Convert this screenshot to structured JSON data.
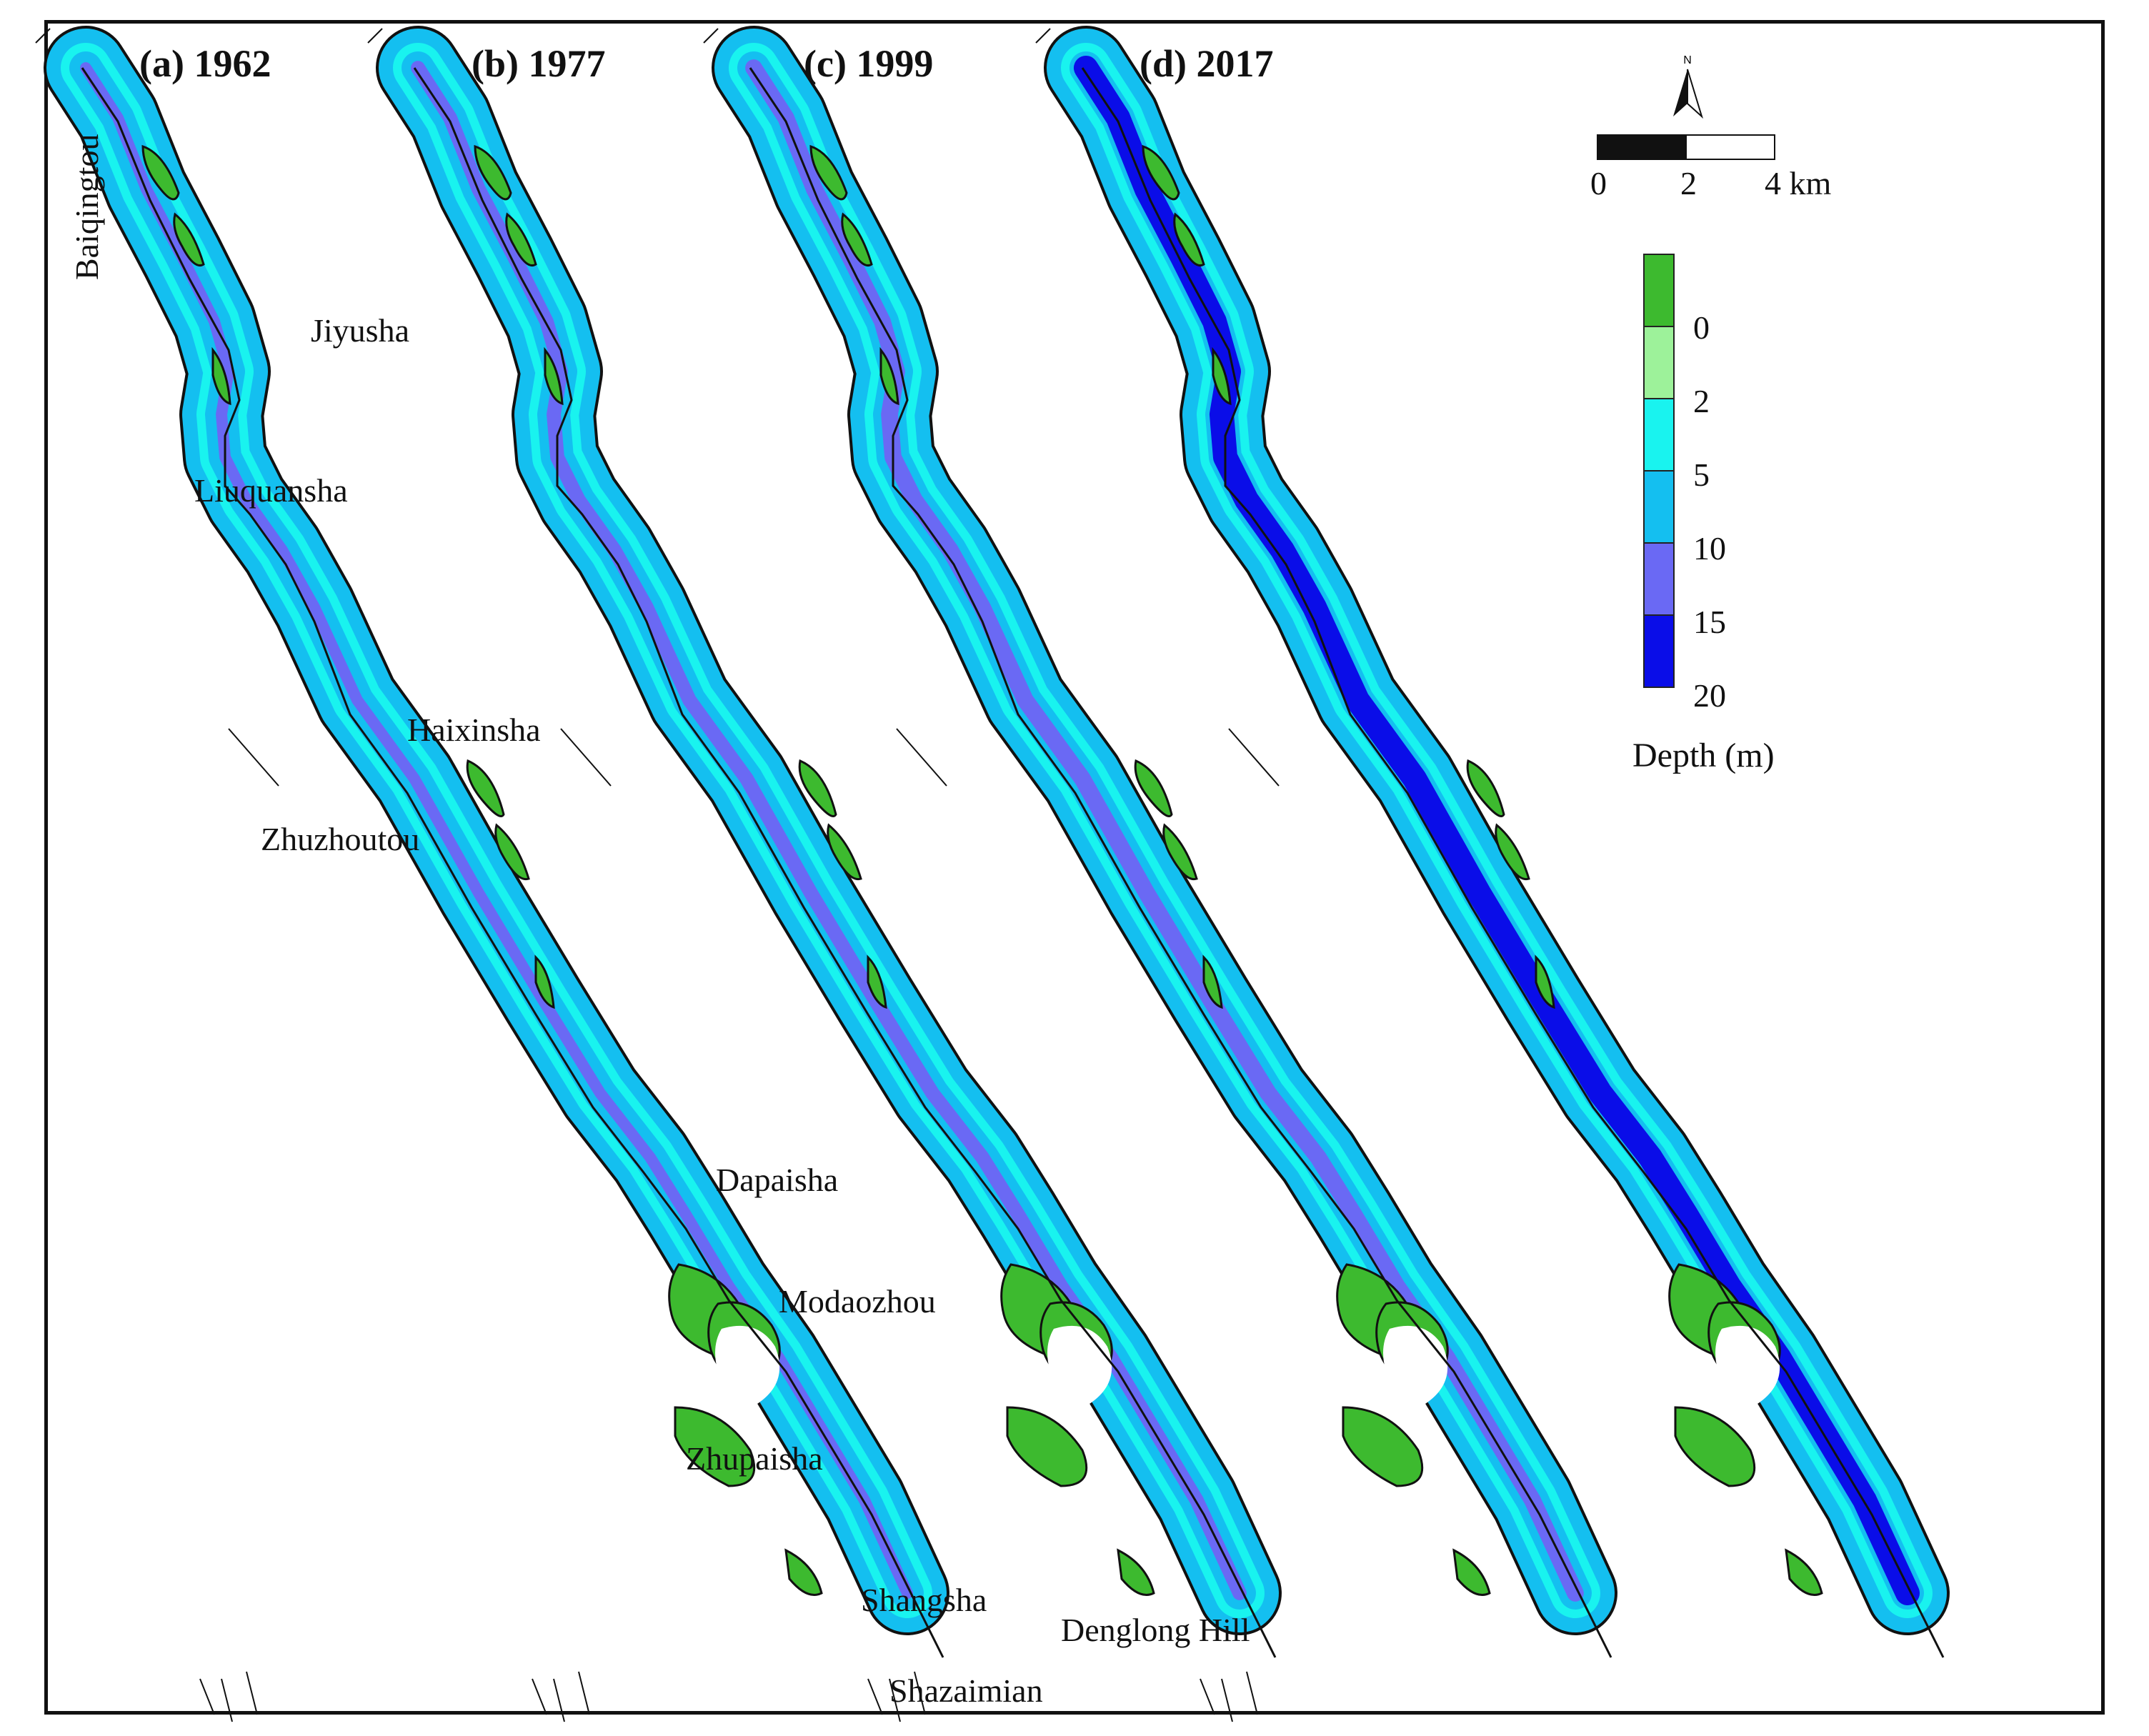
{
  "panels": [
    {
      "label": "(a) 1962",
      "deep_level": 0.15
    },
    {
      "label": "(b) 1977",
      "deep_level": 0.3
    },
    {
      "label": "(c) 1999",
      "deep_level": 0.45
    },
    {
      "label": "(d) 2017",
      "deep_level": 0.85
    }
  ],
  "place_names": {
    "baiqingtou": "Baiqingtou",
    "jiyusha": "Jiyusha",
    "liuquansha": "Liuquansha",
    "haixinsha": "Haixinsha",
    "zhuzhoutou": "Zhuzhoutou",
    "dapaisha": "Dapaisha",
    "modaozhou": "Modaozhou",
    "zhupaisha": "Zhupaisha",
    "shangsha": "Shangsha",
    "denglong_hill": "Denglong Hill",
    "shazaimian": "Shazaimian"
  },
  "scale": {
    "ticks": [
      "0",
      "2",
      "4 km"
    ]
  },
  "north": {
    "label": "N"
  },
  "legend": {
    "title": "Depth (m)",
    "labels": [
      "0",
      "2",
      "5",
      "10",
      "15",
      "20"
    ],
    "colors": [
      "#3dba2f",
      "#9df29a",
      "#19f3ef",
      "#14bff0",
      "#6a69f4",
      "#0a0de8"
    ]
  },
  "colors": {
    "bank": "#111111",
    "land": "#ffffff"
  }
}
